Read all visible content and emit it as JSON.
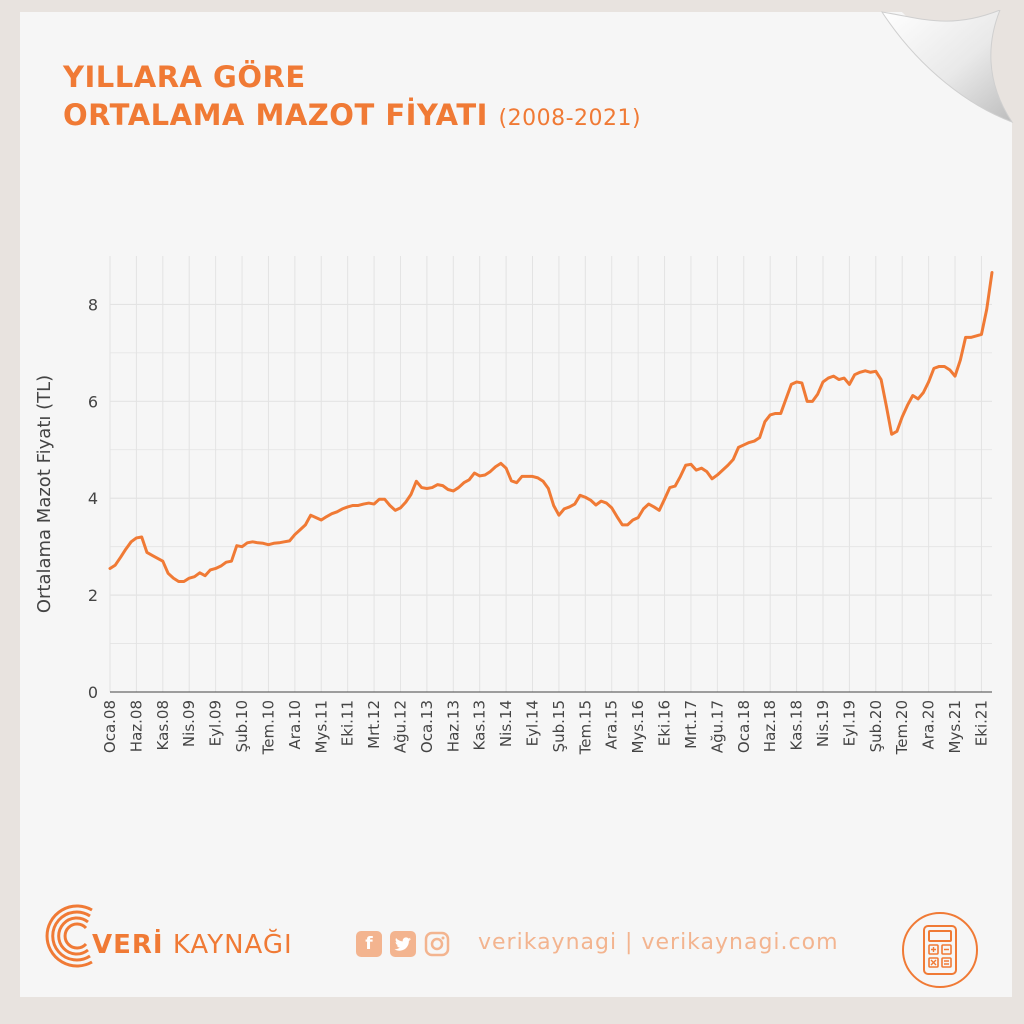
{
  "title": {
    "line1": "YILLARA GÖRE",
    "line2": "ORTALAMA MAZOT FİYATI",
    "years": "(2008-2021)"
  },
  "footer": {
    "brand_bold": "VERİ",
    "brand_rest": "KAYNAĞI",
    "handle": "verikaynagi | verikaynagi.com",
    "social_icons": [
      "facebook-icon",
      "twitter-icon",
      "instagram-icon"
    ]
  },
  "colors": {
    "accent": "#f07a35",
    "accent_light": "#f3b48f",
    "grid": "#e3e3e3",
    "axis_text": "#444444"
  },
  "chart_data": {
    "type": "line",
    "title": "YILLARA GÖRE ORTALAMA MAZOT FİYATI (2008-2021)",
    "xlabel": "",
    "ylabel": "Ortalama Mazot Fiyatı (TL)",
    "ylim": [
      0,
      9
    ],
    "yticks": [
      0,
      2,
      4,
      6,
      8
    ],
    "grid": true,
    "x_start": "2008-01",
    "x_end": "2021-12",
    "xtick_labels": [
      "Oca.08",
      "Haz.08",
      "Kas.08",
      "Nis.09",
      "Eyl.09",
      "Şub.10",
      "Tem.10",
      "Ara.10",
      "Mys.11",
      "Eki.11",
      "Mrt.12",
      "Ağu.12",
      "Oca.13",
      "Haz.13",
      "Kas.13",
      "Nis.14",
      "Eyl.14",
      "Şub.15",
      "Tem.15",
      "Ara.15",
      "Mys.16",
      "Eki.16",
      "Mrt.17",
      "Ağu.17",
      "Oca.18",
      "Haz.18",
      "Kas.18",
      "Nis.19",
      "Eyl.19",
      "Şub.20",
      "Tem.20",
      "Ara.20",
      "Mys.21",
      "Eki.21"
    ],
    "series": [
      {
        "values": [
          2.55,
          2.62,
          2.78,
          2.95,
          3.1,
          3.18,
          3.2,
          2.88,
          2.82,
          2.76,
          2.7,
          2.45,
          2.35,
          2.28,
          2.28,
          2.35,
          2.38,
          2.46,
          2.4,
          2.52,
          2.55,
          2.6,
          2.68,
          2.7,
          3.02,
          3.0,
          3.08,
          3.1,
          3.08,
          3.07,
          3.04,
          3.07,
          3.08,
          3.1,
          3.12,
          3.25,
          3.35,
          3.45,
          3.65,
          3.6,
          3.55,
          3.62,
          3.68,
          3.72,
          3.78,
          3.82,
          3.85,
          3.85,
          3.88,
          3.9,
          3.88,
          3.98,
          3.98,
          3.85,
          3.75,
          3.8,
          3.92,
          4.08,
          4.35,
          4.22,
          4.2,
          4.22,
          4.28,
          4.26,
          4.18,
          4.15,
          4.22,
          4.32,
          4.38,
          4.52,
          4.46,
          4.48,
          4.55,
          4.65,
          4.72,
          4.62,
          4.36,
          4.32,
          4.45,
          4.45,
          4.45,
          4.42,
          4.35,
          4.2,
          3.85,
          3.65,
          3.78,
          3.82,
          3.88,
          4.06,
          4.02,
          3.96,
          3.86,
          3.94,
          3.9,
          3.8,
          3.62,
          3.45,
          3.45,
          3.55,
          3.6,
          3.78,
          3.88,
          3.82,
          3.75,
          3.98,
          4.22,
          4.25,
          4.45,
          4.68,
          4.7,
          4.58,
          4.62,
          4.55,
          4.4,
          4.48,
          4.58,
          4.68,
          4.8,
          5.05,
          5.1,
          5.15,
          5.18,
          5.25,
          5.58,
          5.72,
          5.75,
          5.75,
          6.05,
          6.35,
          6.4,
          6.38,
          6.0,
          6.0,
          6.15,
          6.4,
          6.48,
          6.52,
          6.45,
          6.48,
          6.35,
          6.55,
          6.6,
          6.63,
          6.6,
          6.62,
          6.45,
          5.9,
          5.32,
          5.38,
          5.68,
          5.92,
          6.12,
          6.05,
          6.18,
          6.4,
          6.68,
          6.72,
          6.72,
          6.65,
          6.52,
          6.85,
          7.32,
          7.32,
          7.35,
          7.38,
          7.9,
          8.66
        ]
      }
    ]
  }
}
